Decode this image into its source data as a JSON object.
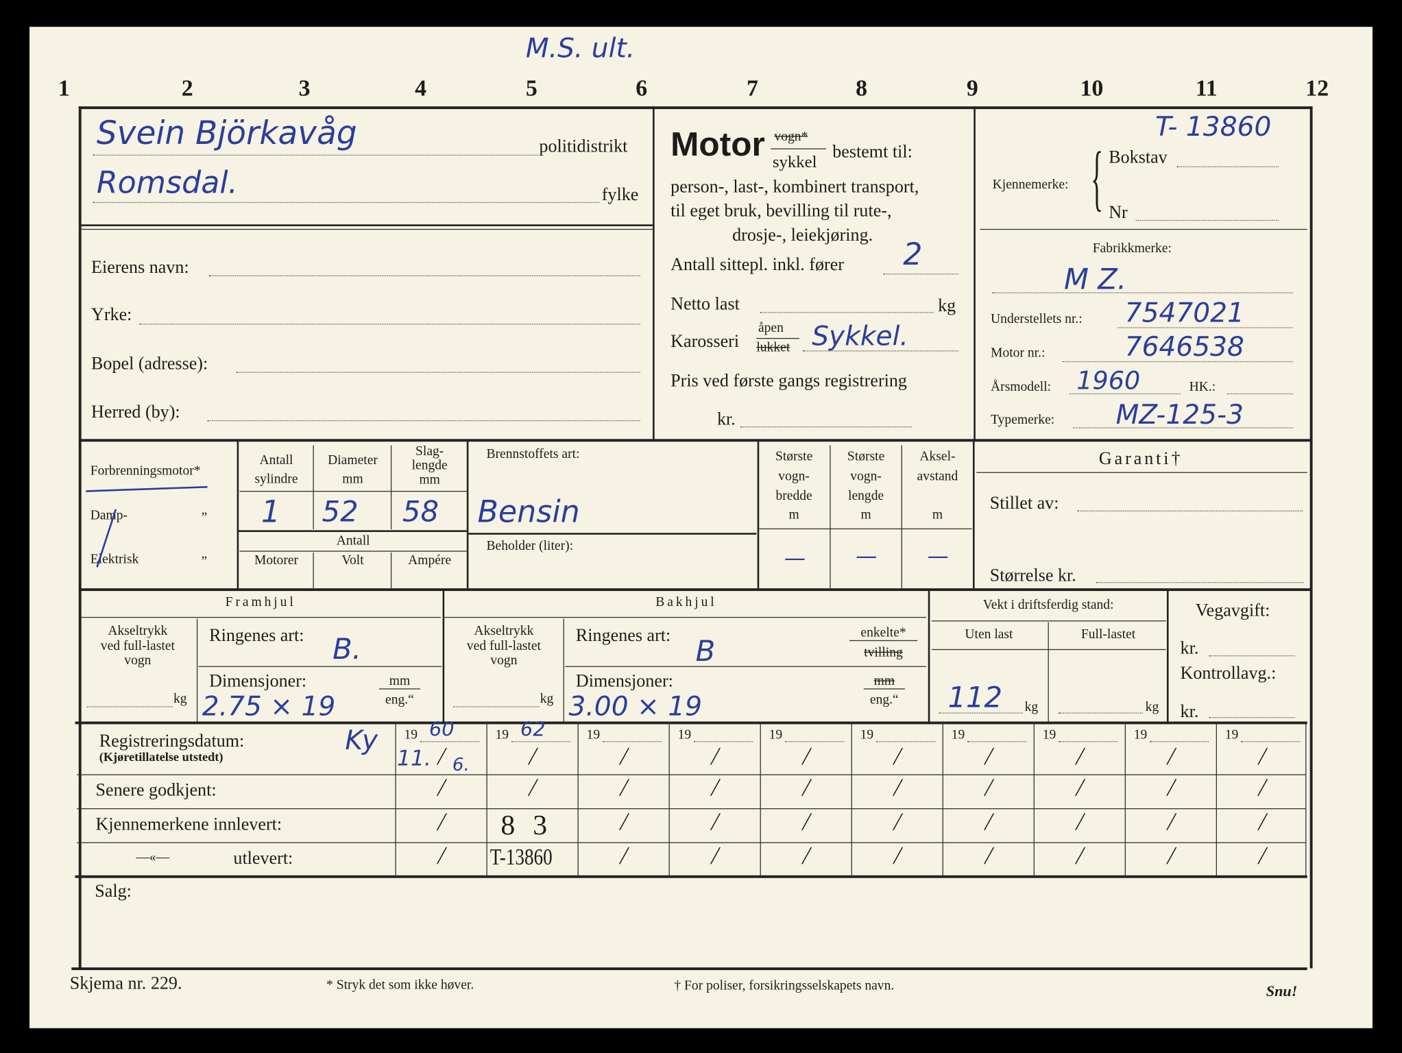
{
  "column_numbers": [
    "1",
    "2",
    "3",
    "4",
    "5",
    "6",
    "7",
    "8",
    "9",
    "10",
    "11",
    "12"
  ],
  "annotation": "M.S. ult.",
  "district": {
    "politidistrikt_value": "Svein Björkavåg",
    "politidistrikt_label": "politidistrikt",
    "fylke_value": "Romsdal.",
    "fylke_label": "fylke"
  },
  "owner": {
    "name_label": "Eierens navn:",
    "occupation_label": "Yrke:",
    "address_label": "Bopel (adresse):",
    "municipality_label": "Herred (by):"
  },
  "motor": {
    "title": "Motor",
    "vogn": "vogn*",
    "sykkel": "sykkel",
    "bestemt": "bestemt til:",
    "line1": "person-, last-, kombinert transport,",
    "line2": "til eget bruk, bevilling til rute-,",
    "line3": "drosje-, leiekjøring.",
    "seats_label": "Antall sittepl. inkl. fører",
    "seats_value": "2",
    "net_label": "Netto last",
    "net_unit": "kg",
    "body_label": "Karosseri",
    "body_open": "åpen",
    "body_closed": "lukket",
    "body_value": "Sykkel.",
    "price_label": "Pris ved første gangs registrering",
    "price_unit": "kr."
  },
  "plate": {
    "label": "Kjennemerke:",
    "bokstav_label": "Bokstav",
    "bokstav_value": "T- 13860",
    "nr_label": "Nr",
    "make_label": "Fabrikkmerke:",
    "make_value": "M Z.",
    "chassis_label": "Understellets nr.:",
    "chassis_value": "7547021",
    "engine_label": "Motor nr.:",
    "engine_value": "7646538",
    "year_label": "Årsmodell:",
    "year_value": "1960",
    "hp_label": "HK.:",
    "type_label": "Typemerke:",
    "type_value": "MZ-125-3"
  },
  "engine": {
    "combustion": "Forbrenningsmotor*",
    "steam": "Damp-",
    "electric": "Elektrisk",
    "ditto": "”",
    "cyl_label1": "Antall",
    "cyl_label2": "sylindre",
    "dia_label1": "Diameter",
    "dia_label2": "mm",
    "stroke_label1": "Slag-",
    "stroke_label2": "lengde",
    "stroke_label3": "mm",
    "cyl_value": "1",
    "dia_value": "52",
    "stroke_value": "58",
    "count_label": "Antall",
    "motors": "Motorer",
    "volt": "Volt",
    "amp": "Ampére",
    "fuel_label": "Brennstoffets art:",
    "fuel_value": "Bensin",
    "tank_label": "Beholder (liter):"
  },
  "dims": {
    "width_l1": "Største",
    "width_l2": "vogn-",
    "width_l3": "bredde",
    "width_unit": "m",
    "width_value": "—",
    "length_l1": "Største",
    "length_l2": "vogn-",
    "length_l3": "lengde",
    "length_unit": "m",
    "length_value": "—",
    "axle_l1": "Aksel-",
    "axle_l2": "avstand",
    "axle_unit": "m",
    "axle_value": "—"
  },
  "guarantee": {
    "title": "Garanti†",
    "by_label": "Stillet av:",
    "size_label": "Størrelse kr."
  },
  "front": {
    "title": "Framhjul",
    "axle1": "Akseltrykk",
    "axle2": "ved full-lastet",
    "axle3": "vogn",
    "kg": "kg",
    "rings_label": "Ringenes art:",
    "rings_value": "B.",
    "dim_label": "Dimensjoner:",
    "dim_value": "2.75 × 19",
    "mm": "mm",
    "eng": "eng.“"
  },
  "rear": {
    "title": "Bakhjul",
    "axle1": "Akseltrykk",
    "axle2": "ved full-lastet",
    "axle3": "vogn",
    "kg": "kg",
    "rings_label": "Ringenes art:",
    "rings_value": "B",
    "single": "enkelte*",
    "twin": "tvilling",
    "dim_label": "Dimensjoner:",
    "dim_value": "3.00 × 19",
    "mm": "mm",
    "eng": "eng.“"
  },
  "weight": {
    "title": "Vekt i driftsferdig stand:",
    "empty_label": "Uten last",
    "full_label": "Full-lastet",
    "empty_value": "112",
    "kg": "kg"
  },
  "tax": {
    "title": "Vegavgift:",
    "kr": "kr.",
    "control": "Kontrollavg.:",
    "kr2": "kr."
  },
  "registration": {
    "date_label": "Registreringsdatum:",
    "date_sub": "(Kjøretillatelse utstedt)",
    "initials": "Ky",
    "approved_label": "Senere godkjent:",
    "returned_label": "Kjennemerkene innlevert:",
    "ditto": "—«—",
    "issued_label": "utlevert:",
    "year_prefix": "19",
    "slash": "/",
    "columns": [
      {
        "year": "60",
        "date": "11.",
        "month": "6."
      },
      {
        "year": "62",
        "returned": "8  3",
        "issued": "T-13860"
      },
      {},
      {},
      {},
      {},
      {},
      {},
      {},
      {}
    ]
  },
  "sale_label": "Salg:",
  "footer": {
    "form": "Skjema nr. 229.",
    "note1": "* Stryk det som ikke høver.",
    "note2": "† For poliser, forsikringsselskapets navn.",
    "turn": "Snu!"
  },
  "colors": {
    "ink": "#2b3e9c",
    "paper": "#f6f3e4"
  }
}
